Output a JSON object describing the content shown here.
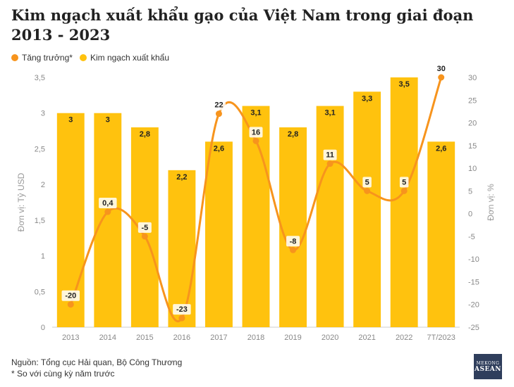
{
  "title": "Kim ngạch xuất khẩu gạo của Việt Nam trong giai đoạn 2013 - 2023",
  "legend": {
    "growth": "Tăng trưởng*",
    "exports": "Kim ngạch xuất khẩu"
  },
  "footer": {
    "source": "Nguồn: Tổng cục Hải quan, Bộ Công Thương",
    "note": "* So với cùng kỳ năm trước"
  },
  "logo": {
    "line1": "MEKONG",
    "line2": "ASEAN"
  },
  "chart_data": {
    "type": "bar",
    "categories": [
      "2013",
      "2014",
      "2015",
      "2016",
      "2017",
      "2018",
      "2019",
      "2020",
      "2021",
      "2022",
      "7T/2023"
    ],
    "series": [
      {
        "name": "Kim ngạch xuất khẩu",
        "type": "bar",
        "axis": "left",
        "color": "#FFC20E",
        "values": [
          3,
          3,
          2.8,
          2.2,
          2.6,
          3.1,
          2.8,
          3.1,
          3.3,
          3.5,
          2.6
        ],
        "labels": [
          "3",
          "3",
          "2,8",
          "2,2",
          "2,6",
          "3,1",
          "2,8",
          "3,1",
          "3,3",
          "3,5",
          "2,6"
        ]
      },
      {
        "name": "Tăng trưởng*",
        "type": "line",
        "axis": "right",
        "color": "#F7941D",
        "values": [
          -20,
          0.4,
          -5,
          -23,
          22,
          16,
          -8,
          11,
          5,
          5,
          30
        ],
        "labels": [
          "-20",
          "0,4",
          "-5",
          "-23",
          "22",
          "16",
          "-8",
          "11",
          "5",
          "5",
          "30"
        ]
      }
    ],
    "y_left": {
      "label": "Đơn vị: Tỷ USD",
      "range": [
        0,
        3.5
      ],
      "ticks": [
        0,
        0.5,
        1,
        1.5,
        2,
        2.5,
        3,
        3.5
      ],
      "tick_labels": [
        "0",
        "0,5",
        "1",
        "1,5",
        "2",
        "2,5",
        "3",
        "3,5"
      ]
    },
    "y_right": {
      "label": "Đơn vị: %",
      "range": [
        -25,
        30
      ],
      "ticks": [
        -25,
        -20,
        -15,
        -10,
        -5,
        0,
        5,
        10,
        15,
        20,
        25,
        30
      ],
      "tick_labels": [
        "-25",
        "-20",
        "-15",
        "-10",
        "-5",
        "0",
        "5",
        "10",
        "15",
        "20",
        "25",
        "30"
      ]
    },
    "grid": false,
    "legend_position": "top-left"
  }
}
